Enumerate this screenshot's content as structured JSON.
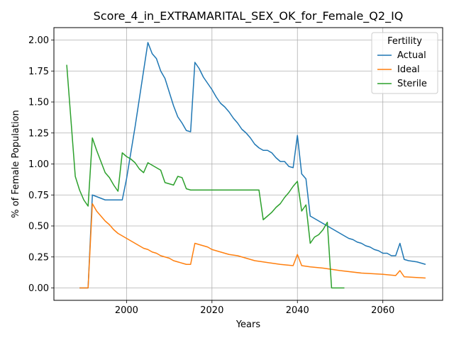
{
  "chart_data": {
    "type": "line",
    "title": "Score_4_in_EXTRAMARITAL_SEX_OK_for_Female_Q2_IQ",
    "xlabel": "Years",
    "ylabel": "% of Female Population",
    "xlim": [
      1983,
      2074
    ],
    "ylim": [
      -0.1,
      2.1
    ],
    "xticks": [
      2000,
      2020,
      2040,
      2060
    ],
    "yticks": [
      0.0,
      0.25,
      0.5,
      0.75,
      1.0,
      1.25,
      1.5,
      1.75,
      2.0
    ],
    "ytick_labels": [
      "0.00",
      "0.25",
      "0.50",
      "0.75",
      "1.00",
      "1.25",
      "1.50",
      "1.75",
      "2.00"
    ],
    "grid": true,
    "legend": {
      "title": "Fertility",
      "placement": "top-right"
    },
    "series": [
      {
        "name": "Actual",
        "color": "#1f77b4",
        "points": [
          [
            1989,
            0.0
          ],
          [
            1991,
            0.0
          ],
          [
            1992,
            0.75
          ],
          [
            1995,
            0.71
          ],
          [
            1999,
            0.71
          ],
          [
            2000,
            0.88
          ],
          [
            2002,
            1.3
          ],
          [
            2005,
            1.98
          ],
          [
            2006,
            1.89
          ],
          [
            2007,
            1.85
          ],
          [
            2008,
            1.75
          ],
          [
            2009,
            1.69
          ],
          [
            2010,
            1.58
          ],
          [
            2011,
            1.47
          ],
          [
            2012,
            1.38
          ],
          [
            2013,
            1.33
          ],
          [
            2014,
            1.27
          ],
          [
            2015,
            1.26
          ],
          [
            2016,
            1.82
          ],
          [
            2017,
            1.77
          ],
          [
            2018,
            1.7
          ],
          [
            2020,
            1.6
          ],
          [
            2021,
            1.54
          ],
          [
            2022,
            1.49
          ],
          [
            2023,
            1.46
          ],
          [
            2024,
            1.42
          ],
          [
            2025,
            1.37
          ],
          [
            2026,
            1.33
          ],
          [
            2027,
            1.28
          ],
          [
            2028,
            1.25
          ],
          [
            2029,
            1.21
          ],
          [
            2030,
            1.16
          ],
          [
            2031,
            1.13
          ],
          [
            2032,
            1.11
          ],
          [
            2033,
            1.11
          ],
          [
            2034,
            1.09
          ],
          [
            2035,
            1.05
          ],
          [
            2036,
            1.02
          ],
          [
            2037,
            1.02
          ],
          [
            2038,
            0.98
          ],
          [
            2039,
            0.97
          ],
          [
            2040,
            1.23
          ],
          [
            2041,
            0.92
          ],
          [
            2042,
            0.88
          ],
          [
            2043,
            0.58
          ],
          [
            2044,
            0.56
          ],
          [
            2046,
            0.52
          ],
          [
            2048,
            0.48
          ],
          [
            2049,
            0.46
          ],
          [
            2050,
            0.44
          ],
          [
            2051,
            0.42
          ],
          [
            2052,
            0.4
          ],
          [
            2053,
            0.39
          ],
          [
            2054,
            0.37
          ],
          [
            2055,
            0.36
          ],
          [
            2056,
            0.34
          ],
          [
            2057,
            0.33
          ],
          [
            2058,
            0.31
          ],
          [
            2059,
            0.3
          ],
          [
            2060,
            0.28
          ],
          [
            2061,
            0.28
          ],
          [
            2062,
            0.26
          ],
          [
            2063,
            0.26
          ],
          [
            2064,
            0.36
          ],
          [
            2065,
            0.23
          ],
          [
            2066,
            0.22
          ],
          [
            2068,
            0.21
          ],
          [
            2070,
            0.19
          ]
        ]
      },
      {
        "name": "Ideal",
        "color": "#ff7f0e",
        "points": [
          [
            1989,
            0.0
          ],
          [
            1991,
            0.0
          ],
          [
            1992,
            0.68
          ],
          [
            1993,
            0.62
          ],
          [
            1994,
            0.58
          ],
          [
            1995,
            0.54
          ],
          [
            1996,
            0.51
          ],
          [
            1997,
            0.47
          ],
          [
            1998,
            0.44
          ],
          [
            1999,
            0.42
          ],
          [
            2000,
            0.4
          ],
          [
            2001,
            0.38
          ],
          [
            2002,
            0.36
          ],
          [
            2003,
            0.34
          ],
          [
            2004,
            0.32
          ],
          [
            2005,
            0.31
          ],
          [
            2006,
            0.29
          ],
          [
            2007,
            0.28
          ],
          [
            2008,
            0.26
          ],
          [
            2009,
            0.25
          ],
          [
            2010,
            0.24
          ],
          [
            2011,
            0.22
          ],
          [
            2012,
            0.21
          ],
          [
            2013,
            0.2
          ],
          [
            2014,
            0.19
          ],
          [
            2015,
            0.19
          ],
          [
            2016,
            0.36
          ],
          [
            2017,
            0.35
          ],
          [
            2018,
            0.34
          ],
          [
            2019,
            0.33
          ],
          [
            2020,
            0.31
          ],
          [
            2022,
            0.29
          ],
          [
            2024,
            0.27
          ],
          [
            2026,
            0.26
          ],
          [
            2028,
            0.24
          ],
          [
            2030,
            0.22
          ],
          [
            2032,
            0.21
          ],
          [
            2034,
            0.2
          ],
          [
            2036,
            0.19
          ],
          [
            2039,
            0.18
          ],
          [
            2040,
            0.27
          ],
          [
            2041,
            0.18
          ],
          [
            2043,
            0.17
          ],
          [
            2046,
            0.16
          ],
          [
            2050,
            0.14
          ],
          [
            2055,
            0.12
          ],
          [
            2060,
            0.11
          ],
          [
            2063,
            0.1
          ],
          [
            2064,
            0.14
          ],
          [
            2065,
            0.09
          ],
          [
            2070,
            0.08
          ]
        ]
      },
      {
        "name": "Sterile",
        "color": "#2ca02c",
        "points": [
          [
            1986,
            1.8
          ],
          [
            1988,
            0.9
          ],
          [
            1989,
            0.79
          ],
          [
            1990,
            0.71
          ],
          [
            1991,
            0.66
          ],
          [
            1992,
            1.21
          ],
          [
            1993,
            1.11
          ],
          [
            1994,
            1.02
          ],
          [
            1995,
            0.93
          ],
          [
            1996,
            0.89
          ],
          [
            1997,
            0.83
          ],
          [
            1998,
            0.78
          ],
          [
            1999,
            1.09
          ],
          [
            2000,
            1.06
          ],
          [
            2001,
            1.04
          ],
          [
            2002,
            1.01
          ],
          [
            2003,
            0.96
          ],
          [
            2004,
            0.93
          ],
          [
            2005,
            1.01
          ],
          [
            2006,
            0.99
          ],
          [
            2007,
            0.97
          ],
          [
            2008,
            0.95
          ],
          [
            2009,
            0.85
          ],
          [
            2010,
            0.84
          ],
          [
            2011,
            0.83
          ],
          [
            2012,
            0.9
          ],
          [
            2013,
            0.89
          ],
          [
            2014,
            0.8
          ],
          [
            2015,
            0.79
          ],
          [
            2017,
            0.79
          ],
          [
            2019,
            0.79
          ],
          [
            2025,
            0.79
          ],
          [
            2031,
            0.79
          ],
          [
            2032,
            0.55
          ],
          [
            2033,
            0.58
          ],
          [
            2034,
            0.61
          ],
          [
            2035,
            0.65
          ],
          [
            2036,
            0.68
          ],
          [
            2037,
            0.73
          ],
          [
            2038,
            0.77
          ],
          [
            2039,
            0.82
          ],
          [
            2040,
            0.86
          ],
          [
            2041,
            0.62
          ],
          [
            2042,
            0.67
          ],
          [
            2043,
            0.36
          ],
          [
            2044,
            0.41
          ],
          [
            2045,
            0.43
          ],
          [
            2046,
            0.47
          ],
          [
            2047,
            0.53
          ],
          [
            2048,
            0.0
          ],
          [
            2051,
            0.0
          ]
        ]
      }
    ]
  }
}
